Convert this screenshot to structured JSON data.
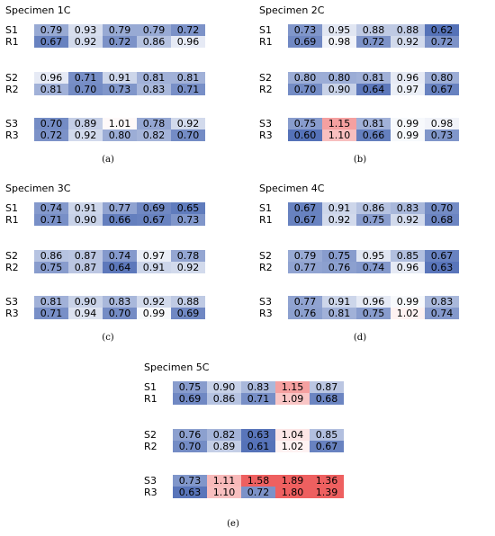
{
  "panels": [
    {
      "id": "a",
      "title": "Specimen 1C",
      "caption": "(a)",
      "groups": [
        {
          "rows": [
            {
              "label": "S1",
              "values": [
                "0.79",
                "0.93",
                "0.79",
                "0.79",
                "0.72"
              ]
            },
            {
              "label": "R1",
              "values": [
                "0.67",
                "0.92",
                "0.72",
                "0.86",
                "0.96"
              ]
            }
          ]
        },
        {
          "rows": [
            {
              "label": "S2",
              "values": [
                "0.96",
                "0.71",
                "0.91",
                "0.81",
                "0.81"
              ]
            },
            {
              "label": "R2",
              "values": [
                "0.81",
                "0.70",
                "0.73",
                "0.83",
                "0.71"
              ]
            }
          ]
        },
        {
          "rows": [
            {
              "label": "S3",
              "values": [
                "0.70",
                "0.89",
                "1.01",
                "0.78",
                "0.92"
              ]
            },
            {
              "label": "R3",
              "values": [
                "0.72",
                "0.92",
                "0.80",
                "0.82",
                "0.70"
              ]
            }
          ]
        }
      ]
    },
    {
      "id": "b",
      "title": "Specimen 2C",
      "caption": "(b)",
      "groups": [
        {
          "rows": [
            {
              "label": "S1",
              "values": [
                "0.73",
                "0.95",
                "0.88",
                "0.88",
                "0.62"
              ]
            },
            {
              "label": "R1",
              "values": [
                "0.69",
                "0.98",
                "0.72",
                "0.92",
                "0.72"
              ]
            }
          ]
        },
        {
          "rows": [
            {
              "label": "S2",
              "values": [
                "0.80",
                "0.80",
                "0.81",
                "0.96",
                "0.80"
              ]
            },
            {
              "label": "R2",
              "values": [
                "0.70",
                "0.90",
                "0.64",
                "0.97",
                "0.67"
              ]
            }
          ]
        },
        {
          "rows": [
            {
              "label": "S3",
              "values": [
                "0.75",
                "1.15",
                "0.81",
                "0.99",
                "0.98"
              ]
            },
            {
              "label": "R3",
              "values": [
                "0.60",
                "1.10",
                "0.66",
                "0.99",
                "0.73"
              ]
            }
          ]
        }
      ]
    },
    {
      "id": "c",
      "title": "Specimen 3C",
      "caption": "(c)",
      "groups": [
        {
          "rows": [
            {
              "label": "S1",
              "values": [
                "0.74",
                "0.91",
                "0.77",
                "0.69",
                "0.65"
              ]
            },
            {
              "label": "R1",
              "values": [
                "0.71",
                "0.90",
                "0.66",
                "0.67",
                "0.73"
              ]
            }
          ]
        },
        {
          "rows": [
            {
              "label": "S2",
              "values": [
                "0.86",
                "0.87",
                "0.74",
                "0.97",
                "0.78"
              ]
            },
            {
              "label": "R2",
              "values": [
                "0.75",
                "0.87",
                "0.64",
                "0.91",
                "0.92"
              ]
            }
          ]
        },
        {
          "rows": [
            {
              "label": "S3",
              "values": [
                "0.81",
                "0.90",
                "0.83",
                "0.92",
                "0.88"
              ]
            },
            {
              "label": "R3",
              "values": [
                "0.71",
                "0.94",
                "0.70",
                "0.99",
                "0.69"
              ]
            }
          ]
        }
      ]
    },
    {
      "id": "d",
      "title": "Specimen 4C",
      "caption": "(d)",
      "groups": [
        {
          "rows": [
            {
              "label": "S1",
              "values": [
                "0.67",
                "0.91",
                "0.86",
                "0.83",
                "0.70"
              ]
            },
            {
              "label": "R1",
              "values": [
                "0.67",
                "0.92",
                "0.75",
                "0.92",
                "0.68"
              ]
            }
          ]
        },
        {
          "rows": [
            {
              "label": "S2",
              "values": [
                "0.79",
                "0.75",
                "0.95",
                "0.85",
                "0.67"
              ]
            },
            {
              "label": "R2",
              "values": [
                "0.77",
                "0.76",
                "0.74",
                "0.96",
                "0.63"
              ]
            }
          ]
        },
        {
          "rows": [
            {
              "label": "S3",
              "values": [
                "0.77",
                "0.91",
                "0.96",
                "0.99",
                "0.83"
              ]
            },
            {
              "label": "R3",
              "values": [
                "0.76",
                "0.81",
                "0.75",
                "1.02",
                "0.74"
              ]
            }
          ]
        }
      ]
    },
    {
      "id": "e",
      "title": "Specimen 5C",
      "caption": "(e)",
      "groups": [
        {
          "rows": [
            {
              "label": "S1",
              "values": [
                "0.75",
                "0.90",
                "0.83",
                "1.15",
                "0.87"
              ]
            },
            {
              "label": "R1",
              "values": [
                "0.69",
                "0.86",
                "0.71",
                "1.09",
                "0.68"
              ]
            }
          ]
        },
        {
          "rows": [
            {
              "label": "S2",
              "values": [
                "0.76",
                "0.82",
                "0.63",
                "1.04",
                "0.85"
              ]
            },
            {
              "label": "R2",
              "values": [
                "0.70",
                "0.89",
                "0.61",
                "1.02",
                "0.67"
              ]
            }
          ]
        },
        {
          "rows": [
            {
              "label": "S3",
              "values": [
                "0.73",
                "1.11",
                "1.58",
                "1.89",
                "1.36"
              ]
            },
            {
              "label": "R3",
              "values": [
                "0.63",
                "1.10",
                "0.72",
                "1.80",
                "1.39"
              ]
            }
          ]
        }
      ]
    }
  ],
  "colors": {
    "low": "#5572b8",
    "neutral": "#ffffff",
    "high": "#ee6060"
  }
}
